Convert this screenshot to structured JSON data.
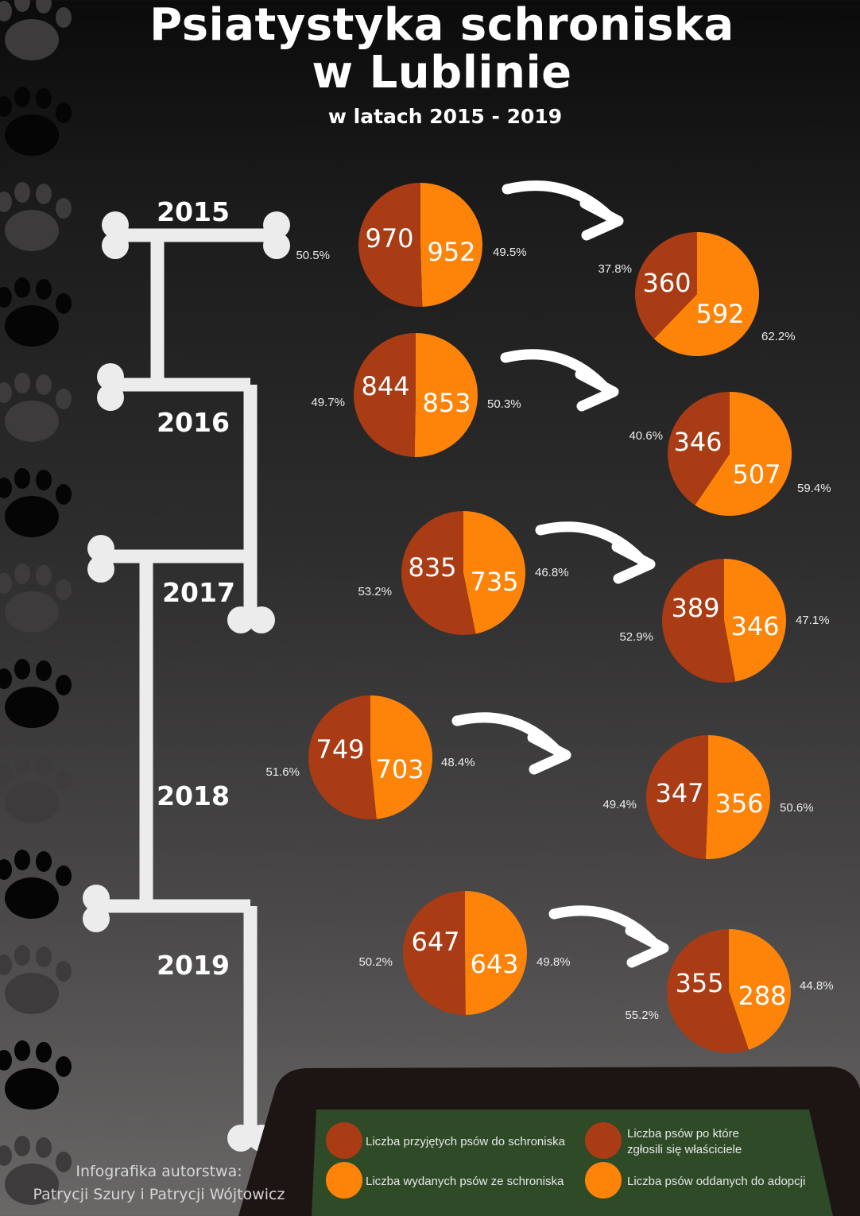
{
  "header": {
    "title_line1": "Psiatystyka schroniska",
    "title_line2": "w Lublinie",
    "subtitle": "w latach 2015 - 2019"
  },
  "colors": {
    "dark_orange": "#a93c15",
    "orange": "#fd8409",
    "bone": "#ececec",
    "bowl": "#1d1414",
    "bowl_fill": "#2e4a27",
    "paw_black": "#050505",
    "paw_grey": "#3d3b3b"
  },
  "chart_data": {
    "type": "pie",
    "years": [
      {
        "year": "2015",
        "shelter": {
          "accepted": 970,
          "released": 952,
          "accepted_pct": "50.5%",
          "released_pct": "49.5%"
        },
        "outcome": {
          "owners": 360,
          "adopted": 592,
          "owners_pct": "37.8%",
          "adopted_pct": "62.2%"
        }
      },
      {
        "year": "2016",
        "shelter": {
          "accepted": 844,
          "released": 853,
          "accepted_pct": "49.7%",
          "released_pct": "50.3%"
        },
        "outcome": {
          "owners": 346,
          "adopted": 507,
          "owners_pct": "40.6%",
          "adopted_pct": "59.4%"
        }
      },
      {
        "year": "2017",
        "shelter": {
          "accepted": 835,
          "released": 735,
          "accepted_pct": "53.2%",
          "released_pct": "46.8%"
        },
        "outcome": {
          "owners": 389,
          "adopted": 346,
          "owners_pct": "52.9%",
          "adopted_pct": "47.1%"
        }
      },
      {
        "year": "2018",
        "shelter": {
          "accepted": 749,
          "released": 703,
          "accepted_pct": "51.6%",
          "released_pct": "48.4%"
        },
        "outcome": {
          "owners": 347,
          "adopted": 356,
          "owners_pct": "49.4%",
          "adopted_pct": "50.6%"
        }
      },
      {
        "year": "2019",
        "shelter": {
          "accepted": 647,
          "released": 643,
          "accepted_pct": "50.2%",
          "released_pct": "49.8%"
        },
        "outcome": {
          "owners": 355,
          "adopted": 288,
          "owners_pct": "55.2%",
          "adopted_pct": "44.8%"
        }
      }
    ],
    "legend": [
      {
        "key": "accepted",
        "label": "Liczba przyjętych psów do schroniska",
        "color": "#a93c15"
      },
      {
        "key": "released",
        "label": "Liczba wydanych psów ze schroniska",
        "color": "#fd8409"
      },
      {
        "key": "owners",
        "label": "Liczba psów po które zgłosili się właściciele",
        "color": "#a93c15"
      },
      {
        "key": "adopted",
        "label": "Liczba psów oddanych do adopcji",
        "color": "#fd8409"
      }
    ]
  },
  "footer": {
    "credit_line1": "Infografika autorstwa:",
    "credit_line2": "Patrycji Szury i Patrycji Wójtowicz"
  }
}
